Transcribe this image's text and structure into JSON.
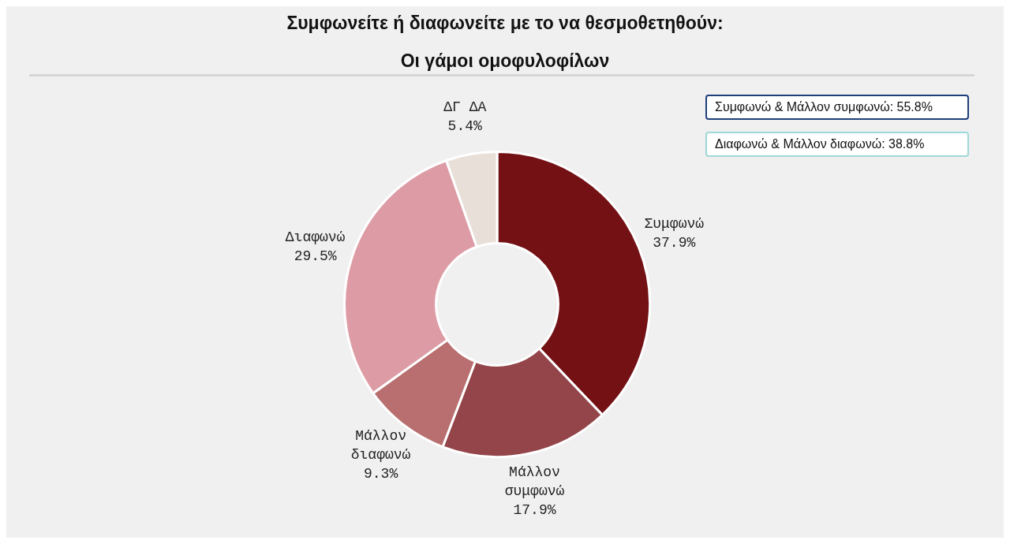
{
  "chart_data": {
    "type": "donut",
    "title": "Συμφωνείτε ή διαφωνείτε με το να θεσμοθετηθούν:",
    "subtitle": "Οι γάμοι ομοφυλοφίλων",
    "categories": [
      "Συμφωνώ",
      "Μάλλον συμφωνώ",
      "Μάλλον διαφωνώ",
      "Διαφωνώ",
      "ΔΓ ΔΑ"
    ],
    "values": [
      37.9,
      17.9,
      9.3,
      29.5,
      5.4
    ],
    "colors": [
      "#731115",
      "#93454a",
      "#b96f6f",
      "#dd9ca5",
      "#e8e0d8"
    ],
    "value_labels": [
      "37.9%",
      "17.9%",
      "9.3%",
      "29.5%",
      "5.4%"
    ],
    "annotations": [
      "Συμφωνώ & Μάλλον συμφωνώ: 55.8%",
      "Διαφωνώ & Μάλλον διαφωνώ: 38.8%"
    ],
    "legend": false
  }
}
